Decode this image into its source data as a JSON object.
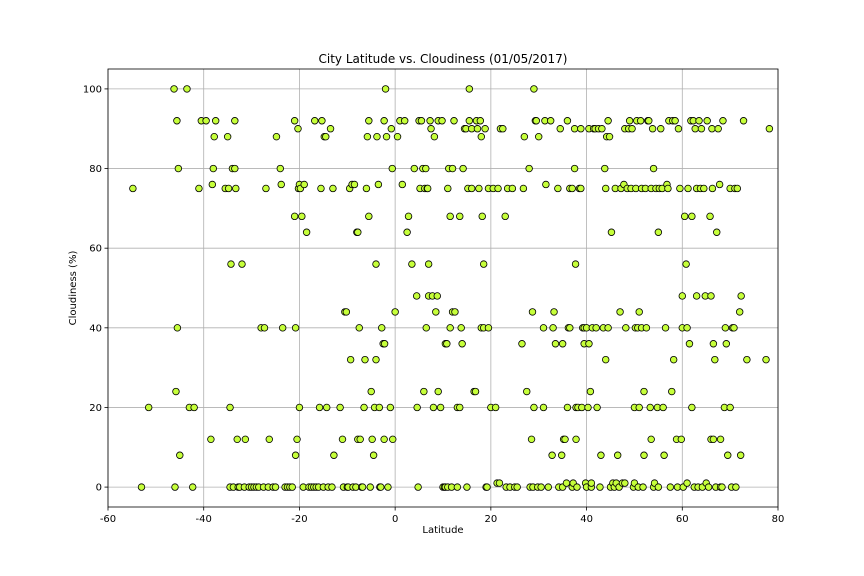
{
  "chart_data": {
    "type": "scatter",
    "title": "City Latitude vs. Cloudiness (01/05/2017)",
    "xlabel": "Latitude",
    "ylabel": "Cloudiness (%)",
    "xlim": [
      -60,
      80
    ],
    "ylim": [
      -5,
      105
    ],
    "xticks": [
      -60,
      -40,
      -20,
      0,
      20,
      40,
      60,
      80
    ],
    "yticks": [
      0,
      20,
      40,
      60,
      80,
      100
    ],
    "grid": true,
    "marker_color": "#c6ff3a",
    "marker_edge": "#000000",
    "points": [
      [
        -54.8,
        75
      ],
      [
        -53,
        0
      ],
      [
        -51.5,
        20
      ],
      [
        -46.2,
        100
      ],
      [
        -46,
        0
      ],
      [
        -45.8,
        24
      ],
      [
        -45.6,
        92
      ],
      [
        -45.5,
        40
      ],
      [
        -45.3,
        80
      ],
      [
        -45,
        8
      ],
      [
        -43.5,
        100
      ],
      [
        -43,
        20
      ],
      [
        -42.3,
        0
      ],
      [
        -42,
        20
      ],
      [
        -41,
        75
      ],
      [
        -40.5,
        92
      ],
      [
        -39.5,
        92
      ],
      [
        -38.5,
        12
      ],
      [
        -38.2,
        76
      ],
      [
        -38,
        80
      ],
      [
        -37.8,
        88
      ],
      [
        -37.5,
        92
      ],
      [
        -35.5,
        75
      ],
      [
        -35,
        88
      ],
      [
        -34.8,
        75
      ],
      [
        -34.5,
        0
      ],
      [
        -34.5,
        20
      ],
      [
        -34.3,
        56
      ],
      [
        -34,
        80
      ],
      [
        -33.8,
        0
      ],
      [
        -33.5,
        92
      ],
      [
        -33.5,
        80
      ],
      [
        -33.3,
        75
      ],
      [
        -33,
        12
      ],
      [
        -32.8,
        0
      ],
      [
        -32.5,
        0
      ],
      [
        -32,
        56
      ],
      [
        -31.5,
        0
      ],
      [
        -31.3,
        12
      ],
      [
        -30.5,
        0
      ],
      [
        -30,
        0
      ],
      [
        -29.5,
        0
      ],
      [
        -29,
        0
      ],
      [
        -28.5,
        0
      ],
      [
        -28,
        40
      ],
      [
        -27.5,
        0
      ],
      [
        -27.3,
        40
      ],
      [
        -27,
        75
      ],
      [
        -26.5,
        0
      ],
      [
        -26.3,
        12
      ],
      [
        -25.5,
        0
      ],
      [
        -25,
        0
      ],
      [
        -24.8,
        88
      ],
      [
        -24,
        80
      ],
      [
        -23.8,
        76
      ],
      [
        -23.5,
        40
      ],
      [
        -23,
        0
      ],
      [
        -22.5,
        0
      ],
      [
        -22,
        0
      ],
      [
        -21.5,
        0
      ],
      [
        -21,
        92
      ],
      [
        -21,
        68
      ],
      [
        -20.8,
        40
      ],
      [
        -20.8,
        8
      ],
      [
        -20.5,
        12
      ],
      [
        -20.3,
        90
      ],
      [
        -20.2,
        75
      ],
      [
        -20,
        76
      ],
      [
        -20,
        20
      ],
      [
        -19.8,
        75
      ],
      [
        -19.5,
        68
      ],
      [
        -19.2,
        0
      ],
      [
        -19,
        76
      ],
      [
        -18.5,
        64
      ],
      [
        -18,
        0
      ],
      [
        -17.5,
        0
      ],
      [
        -17,
        0
      ],
      [
        -16.8,
        92
      ],
      [
        -16.5,
        0
      ],
      [
        -16,
        0
      ],
      [
        -15.8,
        20
      ],
      [
        -15.5,
        75
      ],
      [
        -15.3,
        92
      ],
      [
        -15,
        0
      ],
      [
        -14.8,
        88
      ],
      [
        -14.5,
        88
      ],
      [
        -14.3,
        20
      ],
      [
        -14,
        0
      ],
      [
        -13.5,
        90
      ],
      [
        -13.2,
        0
      ],
      [
        -13,
        75
      ],
      [
        -12.8,
        8
      ],
      [
        -11.5,
        20
      ],
      [
        -11,
        12
      ],
      [
        -10.8,
        0
      ],
      [
        -10.5,
        44
      ],
      [
        -10.2,
        44
      ],
      [
        -10,
        0
      ],
      [
        -9.8,
        0
      ],
      [
        -9.5,
        75
      ],
      [
        -9.3,
        32
      ],
      [
        -9,
        76
      ],
      [
        -8.8,
        0
      ],
      [
        -8.5,
        76
      ],
      [
        -8.2,
        0
      ],
      [
        -8,
        64
      ],
      [
        -7.8,
        64
      ],
      [
        -7.8,
        12
      ],
      [
        -7.5,
        40
      ],
      [
        -7.3,
        12
      ],
      [
        -7,
        0
      ],
      [
        -6.8,
        0
      ],
      [
        -6.5,
        20
      ],
      [
        -6.3,
        32
      ],
      [
        -6,
        75
      ],
      [
        -5.8,
        88
      ],
      [
        -5.5,
        68
      ],
      [
        -5.5,
        92
      ],
      [
        -5.2,
        0
      ],
      [
        -5,
        24
      ],
      [
        -4.8,
        12
      ],
      [
        -4.5,
        8
      ],
      [
        -4.3,
        20
      ],
      [
        -4,
        56
      ],
      [
        -4,
        32
      ],
      [
        -3.8,
        88
      ],
      [
        -3.5,
        76
      ],
      [
        -3.3,
        20
      ],
      [
        -3.2,
        0
      ],
      [
        -3,
        0
      ],
      [
        -2.8,
        40
      ],
      [
        -2.5,
        36
      ],
      [
        -2.3,
        12
      ],
      [
        -2.3,
        92
      ],
      [
        -2.2,
        36
      ],
      [
        -2,
        100
      ],
      [
        -1.8,
        88
      ],
      [
        -1.5,
        0
      ],
      [
        -1,
        20
      ],
      [
        -0.8,
        90
      ],
      [
        -0.6,
        80
      ],
      [
        -0.5,
        12
      ],
      [
        0,
        44
      ],
      [
        0.5,
        88
      ],
      [
        1,
        92
      ],
      [
        1.5,
        76
      ],
      [
        2,
        92
      ],
      [
        2.5,
        64
      ],
      [
        2.8,
        68
      ],
      [
        3.5,
        56
      ],
      [
        4,
        80
      ],
      [
        4.5,
        48
      ],
      [
        4.6,
        20
      ],
      [
        4.8,
        0
      ],
      [
        5,
        92
      ],
      [
        5.2,
        75
      ],
      [
        5.5,
        92
      ],
      [
        5.8,
        80
      ],
      [
        6,
        24
      ],
      [
        6.2,
        75
      ],
      [
        6.4,
        80
      ],
      [
        6.5,
        40
      ],
      [
        6.7,
        75
      ],
      [
        6.8,
        75
      ],
      [
        7,
        56
      ],
      [
        7,
        48
      ],
      [
        7.3,
        92
      ],
      [
        7.5,
        90
      ],
      [
        7.8,
        48
      ],
      [
        8,
        20
      ],
      [
        8.2,
        88
      ],
      [
        8.5,
        44
      ],
      [
        8.8,
        48
      ],
      [
        9,
        24
      ],
      [
        9,
        92
      ],
      [
        9.5,
        20
      ],
      [
        9.8,
        92
      ],
      [
        10,
        0
      ],
      [
        10.3,
        0
      ],
      [
        10.5,
        0
      ],
      [
        10.5,
        36
      ],
      [
        10.8,
        36
      ],
      [
        11,
        0
      ],
      [
        11,
        75
      ],
      [
        11.2,
        80
      ],
      [
        11.5,
        68
      ],
      [
        11.5,
        40
      ],
      [
        11.8,
        0
      ],
      [
        12,
        80
      ],
      [
        12,
        44
      ],
      [
        12.3,
        92
      ],
      [
        12.5,
        44
      ],
      [
        13,
        0
      ],
      [
        13,
        20
      ],
      [
        13.5,
        68
      ],
      [
        13.5,
        20
      ],
      [
        13.8,
        40
      ],
      [
        14,
        36
      ],
      [
        14.2,
        80
      ],
      [
        14.5,
        90
      ],
      [
        14.8,
        90
      ],
      [
        15,
        0
      ],
      [
        15.2,
        75
      ],
      [
        15.5,
        92
      ],
      [
        15.5,
        100
      ],
      [
        16,
        75
      ],
      [
        16,
        90
      ],
      [
        16.5,
        24
      ],
      [
        16.8,
        24
      ],
      [
        17,
        92
      ],
      [
        17.2,
        90
      ],
      [
        17.5,
        75
      ],
      [
        17.8,
        92
      ],
      [
        18,
        88
      ],
      [
        18,
        40
      ],
      [
        18.2,
        68
      ],
      [
        18.5,
        40
      ],
      [
        18.5,
        56
      ],
      [
        18.8,
        90
      ],
      [
        19,
        0
      ],
      [
        19.2,
        0
      ],
      [
        19.5,
        40
      ],
      [
        19.5,
        75
      ],
      [
        20,
        20
      ],
      [
        20.5,
        75
      ],
      [
        21,
        20
      ],
      [
        21.3,
        1
      ],
      [
        21.5,
        75
      ],
      [
        21.8,
        1
      ],
      [
        22,
        90
      ],
      [
        22.5,
        90
      ],
      [
        23,
        68
      ],
      [
        23.2,
        0
      ],
      [
        23.5,
        75
      ],
      [
        24,
        0
      ],
      [
        24.5,
        75
      ],
      [
        25,
        0
      ],
      [
        25.5,
        0
      ],
      [
        26.5,
        36
      ],
      [
        26.8,
        75
      ],
      [
        27,
        88
      ],
      [
        27.5,
        24
      ],
      [
        28,
        80
      ],
      [
        28.2,
        0
      ],
      [
        28.5,
        12
      ],
      [
        28.7,
        44
      ],
      [
        28.8,
        0
      ],
      [
        29,
        100
      ],
      [
        29,
        20
      ],
      [
        29.3,
        92
      ],
      [
        29.5,
        92
      ],
      [
        29.8,
        0
      ],
      [
        30,
        88
      ],
      [
        30.5,
        0
      ],
      [
        31,
        40
      ],
      [
        31,
        20
      ],
      [
        31.3,
        92
      ],
      [
        31.5,
        76
      ],
      [
        32,
        0
      ],
      [
        32.5,
        92
      ],
      [
        32.8,
        8
      ],
      [
        33,
        40
      ],
      [
        33.2,
        44
      ],
      [
        33.5,
        36
      ],
      [
        34,
        75
      ],
      [
        34.2,
        0
      ],
      [
        34.5,
        90
      ],
      [
        34.8,
        8
      ],
      [
        35,
        0
      ],
      [
        35,
        36
      ],
      [
        35.2,
        12
      ],
      [
        35.5,
        12
      ],
      [
        35.8,
        1
      ],
      [
        36,
        20
      ],
      [
        36,
        92
      ],
      [
        36.2,
        40
      ],
      [
        36.5,
        75
      ],
      [
        36.5,
        40
      ],
      [
        37,
        75
      ],
      [
        37,
        0
      ],
      [
        37.2,
        1
      ],
      [
        37.5,
        90
      ],
      [
        37.5,
        80
      ],
      [
        37.7,
        56
      ],
      [
        37.8,
        20
      ],
      [
        37.8,
        12
      ],
      [
        38,
        0
      ],
      [
        38.2,
        20
      ],
      [
        38.5,
        75
      ],
      [
        38.8,
        90
      ],
      [
        38.8,
        75
      ],
      [
        39,
        20
      ],
      [
        39.2,
        40
      ],
      [
        39.5,
        40
      ],
      [
        39.5,
        36
      ],
      [
        39.8,
        1
      ],
      [
        40,
        40
      ],
      [
        40,
        0
      ],
      [
        40.3,
        20
      ],
      [
        40.5,
        36
      ],
      [
        40.5,
        90
      ],
      [
        40.8,
        24
      ],
      [
        41,
        0
      ],
      [
        41,
        1
      ],
      [
        41.2,
        40
      ],
      [
        41.5,
        90
      ],
      [
        41.8,
        90
      ],
      [
        42,
        40
      ],
      [
        42.2,
        20
      ],
      [
        42.5,
        90
      ],
      [
        42.8,
        0
      ],
      [
        43,
        8
      ],
      [
        43.2,
        90
      ],
      [
        43.5,
        40
      ],
      [
        43.8,
        80
      ],
      [
        44,
        75
      ],
      [
        44,
        32
      ],
      [
        44.2,
        88
      ],
      [
        44.5,
        40
      ],
      [
        44.5,
        92
      ],
      [
        44.8,
        88
      ],
      [
        45,
        0
      ],
      [
        45.2,
        64
      ],
      [
        45.5,
        1
      ],
      [
        45.8,
        0
      ],
      [
        46,
        75
      ],
      [
        46.2,
        1
      ],
      [
        46.5,
        8
      ],
      [
        46.8,
        0
      ],
      [
        47,
        44
      ],
      [
        47.2,
        75
      ],
      [
        47.5,
        1
      ],
      [
        47.8,
        76
      ],
      [
        48,
        90
      ],
      [
        48,
        1
      ],
      [
        48.2,
        40
      ],
      [
        48.5,
        75
      ],
      [
        48.8,
        90
      ],
      [
        49,
        92
      ],
      [
        49.3,
        75
      ],
      [
        49.5,
        90
      ],
      [
        49.8,
        0
      ],
      [
        50,
        1
      ],
      [
        50,
        20
      ],
      [
        50.2,
        40
      ],
      [
        50.3,
        75
      ],
      [
        50.5,
        92
      ],
      [
        50.7,
        40
      ],
      [
        50.8,
        0
      ],
      [
        51,
        20
      ],
      [
        51,
        44
      ],
      [
        51.3,
        92
      ],
      [
        51.5,
        75
      ],
      [
        51.5,
        40
      ],
      [
        51.8,
        0
      ],
      [
        52,
        24
      ],
      [
        52,
        8
      ],
      [
        52.3,
        75
      ],
      [
        52.5,
        40
      ],
      [
        52.8,
        92
      ],
      [
        53,
        92
      ],
      [
        53.3,
        20
      ],
      [
        53.5,
        12
      ],
      [
        53.5,
        75
      ],
      [
        53.8,
        90
      ],
      [
        54,
        80
      ],
      [
        54,
        0
      ],
      [
        54.2,
        1
      ],
      [
        54.5,
        75
      ],
      [
        54.8,
        20
      ],
      [
        55,
        64
      ],
      [
        55,
        0
      ],
      [
        55.2,
        75
      ],
      [
        55.5,
        90
      ],
      [
        55.8,
        75
      ],
      [
        56,
        20
      ],
      [
        56.2,
        8
      ],
      [
        56.5,
        40
      ],
      [
        56.8,
        76
      ],
      [
        57,
        75
      ],
      [
        57.2,
        92
      ],
      [
        57.5,
        0
      ],
      [
        57.8,
        24
      ],
      [
        58,
        92
      ],
      [
        58.2,
        32
      ],
      [
        58.5,
        92
      ],
      [
        58.8,
        12
      ],
      [
        59,
        0
      ],
      [
        59.2,
        90
      ],
      [
        59.5,
        75
      ],
      [
        59.8,
        12
      ],
      [
        60,
        48
      ],
      [
        60,
        40
      ],
      [
        60.2,
        0
      ],
      [
        60.5,
        68
      ],
      [
        60.8,
        56
      ],
      [
        61,
        40
      ],
      [
        61,
        1
      ],
      [
        61.2,
        75
      ],
      [
        61.5,
        36
      ],
      [
        61.8,
        92
      ],
      [
        62,
        68
      ],
      [
        62,
        20
      ],
      [
        62.3,
        92
      ],
      [
        62.5,
        0
      ],
      [
        62.7,
        90
      ],
      [
        63,
        48
      ],
      [
        63,
        75
      ],
      [
        63.3,
        0
      ],
      [
        63.5,
        92
      ],
      [
        63.8,
        75
      ],
      [
        64,
        90
      ],
      [
        64.2,
        0
      ],
      [
        64.5,
        75
      ],
      [
        64.8,
        48
      ],
      [
        65,
        1
      ],
      [
        65.2,
        92
      ],
      [
        65.5,
        0
      ],
      [
        65.8,
        68
      ],
      [
        66,
        12
      ],
      [
        66,
        48
      ],
      [
        66.2,
        90
      ],
      [
        66.3,
        75
      ],
      [
        66.5,
        12
      ],
      [
        66.5,
        36
      ],
      [
        66.8,
        32
      ],
      [
        67,
        0
      ],
      [
        67.2,
        64
      ],
      [
        67.5,
        90
      ],
      [
        67.8,
        76
      ],
      [
        68,
        0
      ],
      [
        68,
        12
      ],
      [
        68.3,
        0
      ],
      [
        68.5,
        92
      ],
      [
        68.8,
        20
      ],
      [
        69,
        40
      ],
      [
        69.2,
        36
      ],
      [
        69.5,
        8
      ],
      [
        70,
        75
      ],
      [
        70,
        20
      ],
      [
        70.3,
        0
      ],
      [
        70.5,
        40
      ],
      [
        70.8,
        40
      ],
      [
        71,
        75
      ],
      [
        71.2,
        0
      ],
      [
        71.5,
        75
      ],
      [
        72,
        44
      ],
      [
        72.2,
        8
      ],
      [
        72.3,
        48
      ],
      [
        72.8,
        92
      ],
      [
        73.5,
        32
      ],
      [
        77.5,
        32
      ],
      [
        78.2,
        90
      ]
    ]
  }
}
